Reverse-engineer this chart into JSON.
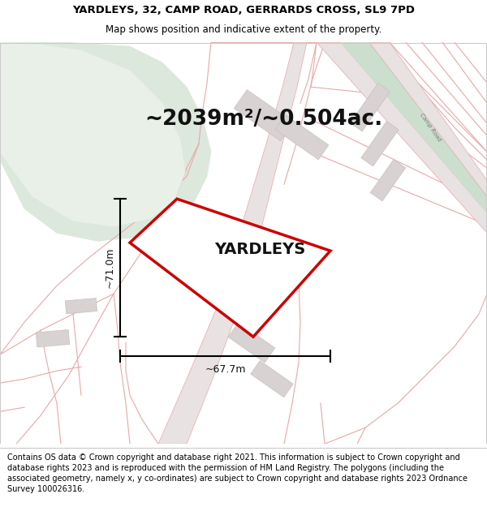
{
  "title_line1": "YARDLEYS, 32, CAMP ROAD, GERRARDS CROSS, SL9 7PD",
  "title_line2": "Map shows position and indicative extent of the property.",
  "area_text": "~2039m²/~0.504ac.",
  "property_label": "YARDLEYS",
  "width_label": "~67.7m",
  "height_label": "~71.0m",
  "footer_text": "Contains OS data © Crown copyright and database right 2021. This information is subject to Crown copyright and database rights 2023 and is reproduced with the permission of HM Land Registry. The polygons (including the associated geometry, namely x, y co-ordinates) are subject to Crown copyright and database rights 2023 Ordnance Survey 100026316.",
  "map_bg": "#f7f3f3",
  "green_area_color": "#dce8dc",
  "green_area2_color": "#d0e4d0",
  "road_surface_color": "#e8e2e2",
  "building_color": "#d8d2d2",
  "property_fill": "#ffffff",
  "property_outline": "#cc0000",
  "road_line_color": "#e8a8a8",
  "title_fontsize": 9.5,
  "subtitle_fontsize": 8.5,
  "area_fontsize": 19,
  "label_fontsize": 14,
  "footer_fontsize": 7.0
}
